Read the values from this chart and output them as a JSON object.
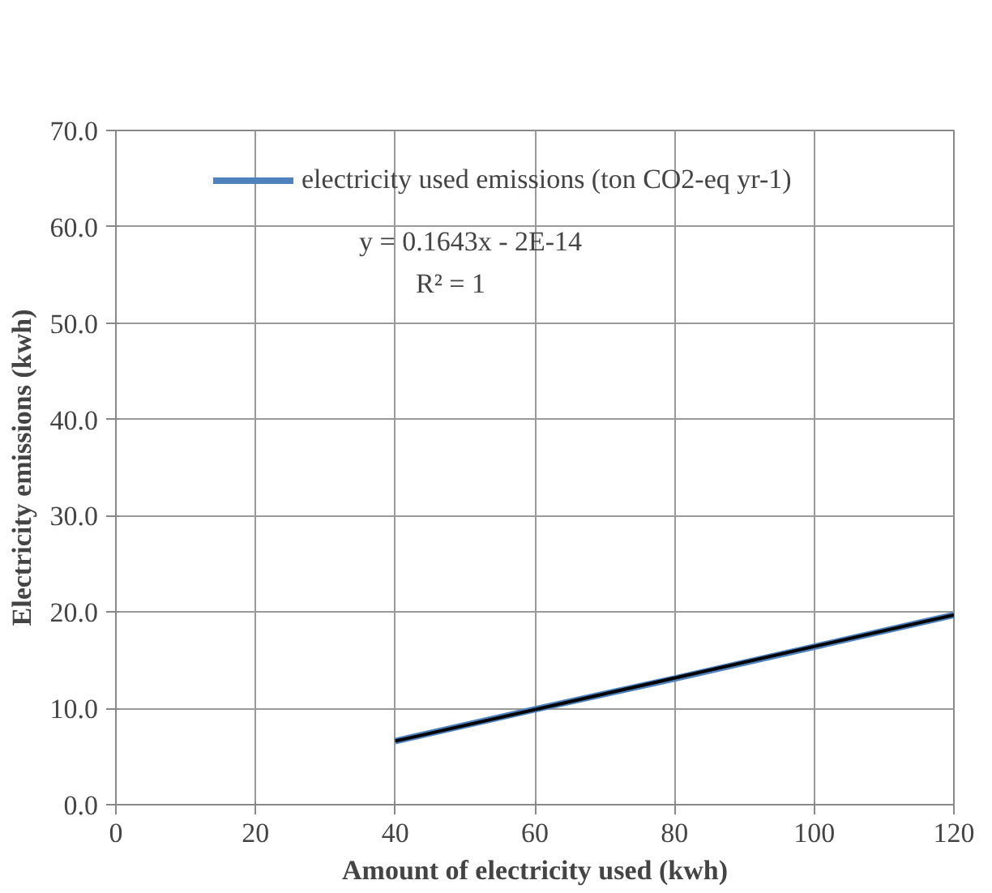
{
  "chart_data": {
    "type": "line",
    "xlabel": "Amount of electricity used (kwh)",
    "ylabel": "Electricity emissions (kwh)",
    "x": [
      40,
      60,
      80,
      100,
      120
    ],
    "series": [
      {
        "name": "electricity used emissions (ton CO2-eq yr-1)",
        "color": "#4f81bd",
        "values": [
          6.6,
          9.9,
          13.1,
          16.4,
          19.7
        ]
      },
      {
        "type": "line",
        "color": "#000000",
        "x": [
          40,
          120
        ],
        "values": [
          6.6,
          19.7
        ]
      }
    ],
    "annotations": [
      "y = 0.1643x - 2E-14",
      "R² = 1"
    ],
    "xlim": [
      0,
      120
    ],
    "ylim": [
      0,
      70
    ],
    "xticks": [
      0,
      20,
      40,
      60,
      80,
      100,
      120
    ],
    "yticks": [
      {
        "value": 0,
        "label": "0.0"
      },
      {
        "value": 10,
        "label": "10.0"
      },
      {
        "value": 20,
        "label": "20.0"
      },
      {
        "value": 30,
        "label": "30.0"
      },
      {
        "value": 40,
        "label": "40.0"
      },
      {
        "value": 50,
        "label": "50.0"
      },
      {
        "value": 60,
        "label": "60.0"
      },
      {
        "value": 70,
        "label": "70.0"
      }
    ],
    "grid": true,
    "legend": "top",
    "marker": "none",
    "line_style": "solid"
  }
}
